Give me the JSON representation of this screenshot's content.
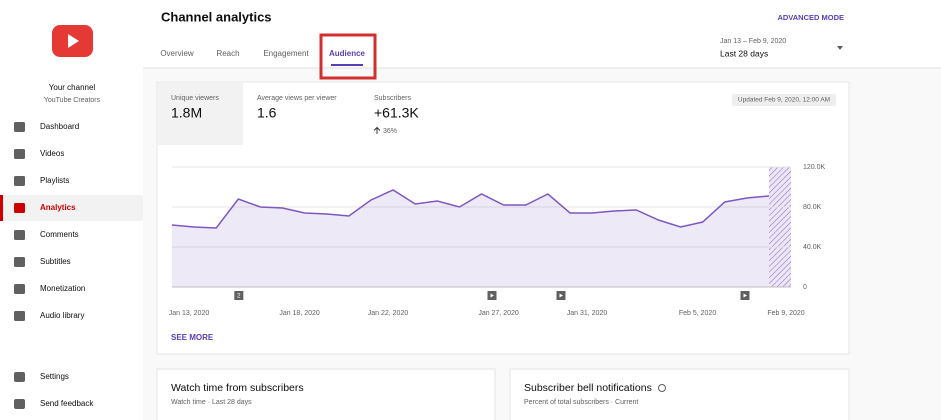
{
  "header": {
    "title": "Channel analytics",
    "advanced_mode": "ADVANCED MODE",
    "date_range": "Jan 13 – Feb 9, 2020",
    "period": "Last 28 days"
  },
  "tabs": [
    "Overview",
    "Reach",
    "Engagement",
    "Audience"
  ],
  "sidebar": {
    "channel_title": "Your channel",
    "channel_name": "YouTube Creators",
    "items": [
      "Dashboard",
      "Videos",
      "Playlists",
      "Analytics",
      "Comments",
      "Subtitles",
      "Monetization",
      "Audio library"
    ],
    "footer_items": [
      "Settings",
      "Send feedback"
    ]
  },
  "metrics": [
    {
      "label": "Unique viewers",
      "value": "1.8M"
    },
    {
      "label": "Average views per viewer",
      "value": "1.6"
    },
    {
      "label": "Subscribers",
      "value": "+61.3K",
      "change": "36%"
    }
  ],
  "updated": "Updated Feb 9, 2020, 12:00 AM",
  "see_more": "SEE MORE",
  "cards": [
    {
      "title": "Watch time from subscribers",
      "subtitle": "Watch time · Last 28 days"
    },
    {
      "title": "Subscriber bell notifications",
      "subtitle": "Percent of total subscribers · Current"
    }
  ],
  "chart_data": {
    "type": "area",
    "color": "#7e57c2",
    "x": [
      "2020-01-13",
      "2020-01-14",
      "2020-01-15",
      "2020-01-16",
      "2020-01-17",
      "2020-01-18",
      "2020-01-19",
      "2020-01-20",
      "2020-01-21",
      "2020-01-22",
      "2020-01-23",
      "2020-01-24",
      "2020-01-25",
      "2020-01-26",
      "2020-01-27",
      "2020-01-28",
      "2020-01-29",
      "2020-01-30",
      "2020-01-31",
      "2020-02-01",
      "2020-02-02",
      "2020-02-03",
      "2020-02-04",
      "2020-02-05",
      "2020-02-06",
      "2020-02-07",
      "2020-02-08",
      "2020-02-09"
    ],
    "values": [
      62000,
      60000,
      59000,
      88000,
      80000,
      79000,
      74000,
      73000,
      71000,
      87000,
      97000,
      83000,
      86000,
      80000,
      93000,
      82000,
      82000,
      93000,
      74000,
      74000,
      76000,
      77000,
      67000,
      60000,
      65000,
      85000,
      89000,
      91000
    ],
    "xlim": [
      "2020-01-13",
      "2020-02-09"
    ],
    "xticks": [
      {
        "value": "2020-01-13",
        "label": "Jan 13, 2020"
      },
      {
        "value": "2020-01-18",
        "label": "Jan 18, 2020"
      },
      {
        "value": "2020-01-22",
        "label": "Jan 22, 2020"
      },
      {
        "value": "2020-01-27",
        "label": "Jan 27, 2020"
      },
      {
        "value": "2020-01-31",
        "label": "Jan 31, 2020"
      },
      {
        "value": "2020-02-05",
        "label": "Feb 5, 2020"
      },
      {
        "value": "2020-02-09",
        "label": "Feb 9, 2020"
      }
    ],
    "ylim": [
      0,
      120000
    ],
    "yticks": [
      0,
      {
        "value": 40000,
        "label": "40.0K"
      },
      {
        "value": 80000,
        "label": "80.0K"
      },
      {
        "value": 120000,
        "label": "120.0K"
      }
    ],
    "grid": true,
    "annotations": [
      {
        "x": "2020-01-16",
        "label": "2"
      }
    ]
  }
}
